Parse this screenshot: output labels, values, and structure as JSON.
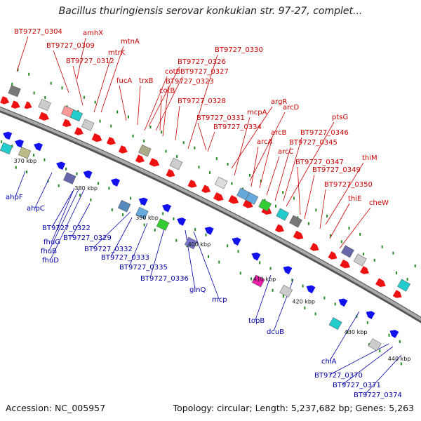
{
  "title": "Bacillus thuringiensis serovar konkukian str. 97-27, complet...",
  "footer": {
    "accession": "Accession: NC_005957",
    "topology": "Topology: circular; Length: 5,237,682 bp; Genes: 5,263"
  },
  "colors": {
    "outer_label": "#cc0000",
    "inner_label": "#0000aa",
    "forward_gene": "#ee1111",
    "reverse_gene": "#1111ee",
    "backbone": "#888888",
    "tick": "#228822"
  },
  "kbp_ticks": [
    "370 kbp",
    "380 kbp",
    "390 kbp",
    "400 kbp",
    "410 kbp",
    "420 kbp",
    "430 kbp",
    "440 kbp"
  ],
  "outer_labels": [
    "BT9727_0304",
    "amhX",
    "BT9727_0309",
    "mtnA",
    "mtrK",
    "BT9727_0312",
    "BT9727_0330",
    "fucA",
    "trxB",
    "cotB",
    "BT9727_0326",
    "BT9727_0327",
    "BT9727_0323",
    "cotB",
    "BT9727_0328",
    "argR",
    "mcpA",
    "BT9727_0331",
    "BT9727_0334",
    "arcD",
    "arcB",
    "arcA",
    "arcC",
    "ptsG",
    "BT9727_0346",
    "BT9727_0345",
    "BT9727_0347",
    "BT9727_0349",
    "thiM",
    "BT9727_0350",
    "thiE",
    "cheW"
  ],
  "inner_labels": [
    "ahpF",
    "ahpC",
    "BT9727_0322",
    "fhuG",
    "fhuB",
    "fhuD",
    "BT9727_0329",
    "BT9727_0332",
    "BT9727_0333",
    "BT9727_0335",
    "BT9727_0336",
    "glnQ",
    "mcp",
    "topB",
    "dcuB",
    "chiA",
    "BT9727_0370",
    "BT9727_0371",
    "BT9727_0374"
  ]
}
